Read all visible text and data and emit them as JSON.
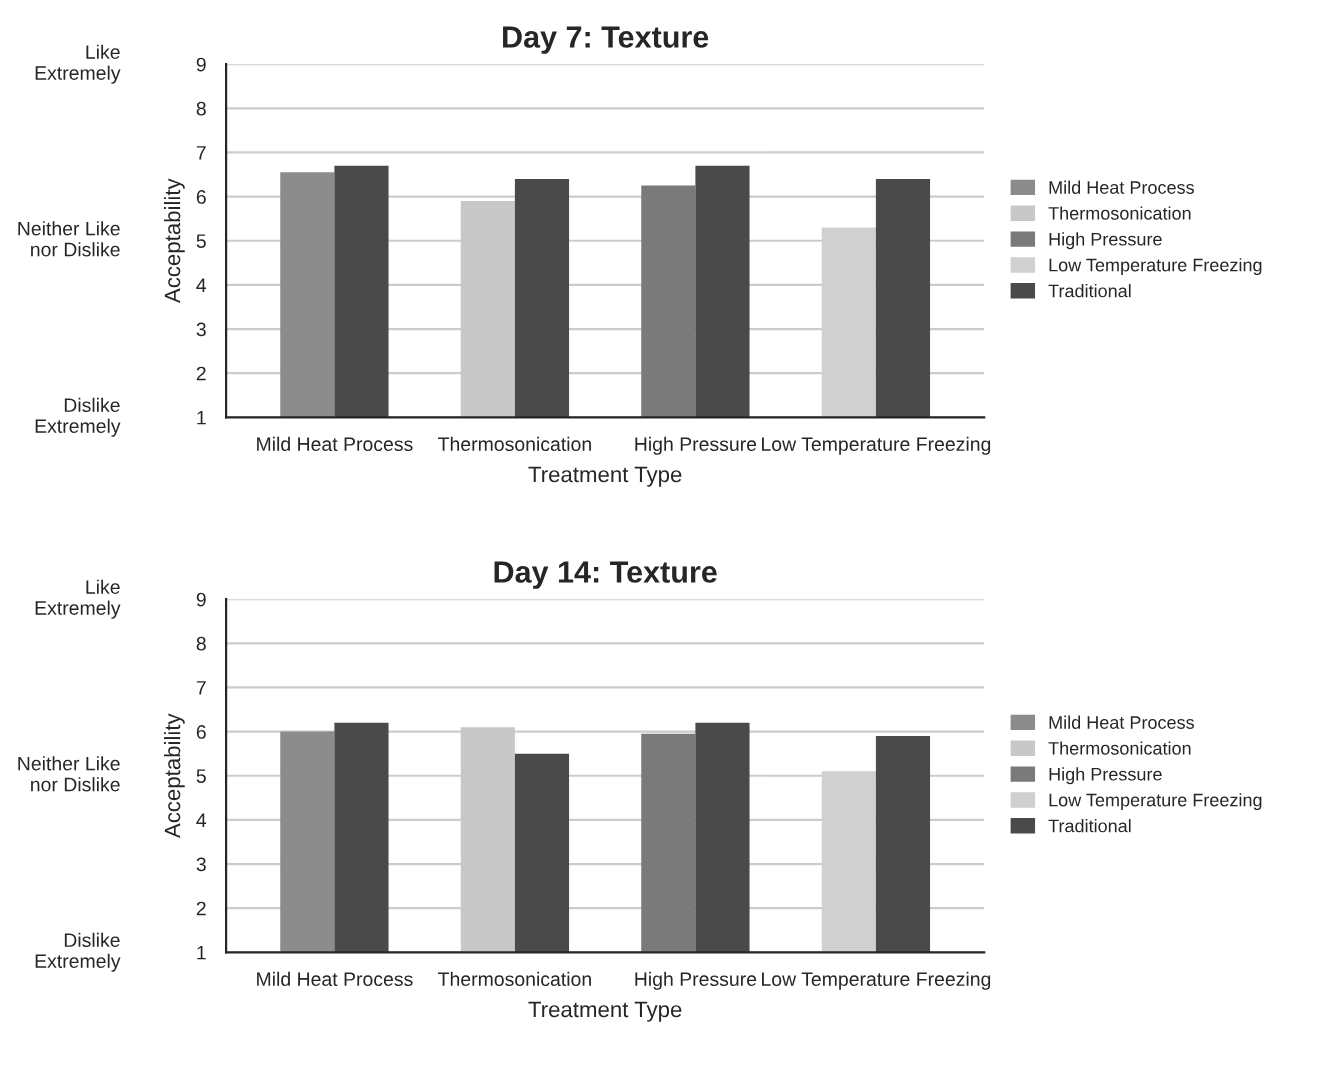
{
  "chart_data": [
    {
      "type": "bar",
      "title": "Day 7: Texture",
      "xlabel": "Treatment Type",
      "ylabel": "Acceptability",
      "categories": [
        "Mild Heat Process",
        "Thermosonication",
        "High Pressure",
        "Low Temperature Freezing"
      ],
      "series": [
        {
          "colors": [
            "#8c8c8c",
            "#c8c8c8",
            "#7a7a7a",
            "#d0d0d0"
          ],
          "values": [
            6.55,
            5.9,
            6.25,
            5.3
          ]
        },
        {
          "name": "Traditional",
          "color": "#4a4a4a",
          "values": [
            6.7,
            6.4,
            6.7,
            6.4
          ]
        }
      ],
      "ylim": [
        1,
        9
      ],
      "yticks": [
        1,
        2,
        3,
        4,
        5,
        6,
        7,
        8,
        9
      ],
      "grid": "y",
      "legend": "right",
      "annotations": [
        "Like Extremely",
        "Neither Like nor Dislike",
        "Dislike Extremely"
      ]
    },
    {
      "type": "bar",
      "title": "Day 14: Texture",
      "xlabel": "Treatment Type",
      "ylabel": "Acceptability",
      "categories": [
        "Mild Heat Process",
        "Thermosonication",
        "High Pressure",
        "Low Temperature Freezing"
      ],
      "series": [
        {
          "colors": [
            "#8c8c8c",
            "#c8c8c8",
            "#7a7a7a",
            "#d0d0d0"
          ],
          "values": [
            6.0,
            6.1,
            5.95,
            5.1
          ]
        },
        {
          "name": "Traditional",
          "color": "#4a4a4a",
          "values": [
            6.2,
            5.5,
            6.2,
            5.9
          ]
        }
      ],
      "ylim": [
        1,
        9
      ],
      "yticks": [
        1,
        2,
        3,
        4,
        5,
        6,
        7,
        8,
        9
      ],
      "grid": "y",
      "legend": "right",
      "annotations": [
        "Like Extremely",
        "Neither Like nor Dislike",
        "Dislike Extremely"
      ]
    }
  ]
}
